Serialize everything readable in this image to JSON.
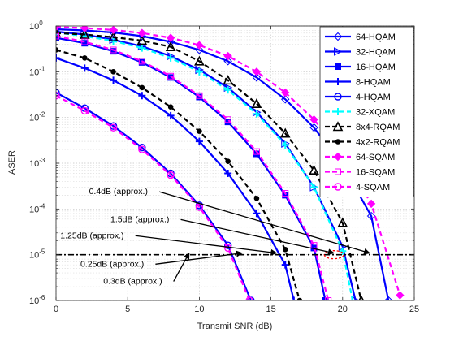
{
  "chart_data": {
    "type": "line",
    "xlabel": "Transmit SNR (dB)",
    "ylabel": "ASER",
    "xlim": [
      0,
      25
    ],
    "ylim": [
      1e-06,
      1
    ],
    "yscale": "log",
    "xticks": [
      "0",
      "5",
      "10",
      "15",
      "20",
      "25"
    ],
    "yticks": [
      "10^0",
      "10^-1",
      "10^-2",
      "10^-3",
      "10^-4",
      "10^-5",
      "10^-6"
    ],
    "grid": true,
    "legend_position": "top-right",
    "reference_level": 1e-05,
    "series": [
      {
        "name": "64-HQAM",
        "color": "#0000ff",
        "dash": "solid",
        "marker": "diamond",
        "points": [
          [
            0,
            0.85
          ],
          [
            2,
            0.8
          ],
          [
            4,
            0.72
          ],
          [
            6,
            0.6
          ],
          [
            8,
            0.45
          ],
          [
            10,
            0.3
          ],
          [
            12,
            0.17
          ],
          [
            14,
            0.075
          ],
          [
            16,
            0.025
          ],
          [
            18,
            0.006
          ],
          [
            20,
            0.0009
          ],
          [
            22,
            7e-05
          ],
          [
            23.2,
            1e-06
          ]
        ]
      },
      {
        "name": "32-HQAM",
        "color": "#0000ff",
        "dash": "solid",
        "marker": "triangle-right",
        "points": [
          [
            0,
            0.75
          ],
          [
            2,
            0.65
          ],
          [
            4,
            0.5
          ],
          [
            6,
            0.36
          ],
          [
            8,
            0.22
          ],
          [
            10,
            0.11
          ],
          [
            12,
            0.045
          ],
          [
            14,
            0.013
          ],
          [
            16,
            0.0027
          ],
          [
            18,
            0.0003
          ],
          [
            20,
            1.5e-05
          ],
          [
            20.9,
            1e-06
          ]
        ]
      },
      {
        "name": "16-HQAM",
        "color": "#0000ff",
        "dash": "solid",
        "marker": "square",
        "points": [
          [
            0,
            0.55
          ],
          [
            2,
            0.42
          ],
          [
            4,
            0.28
          ],
          [
            6,
            0.16
          ],
          [
            8,
            0.075
          ],
          [
            10,
            0.028
          ],
          [
            12,
            0.008
          ],
          [
            14,
            0.0016
          ],
          [
            16,
            0.0002
          ],
          [
            18,
            1.4e-05
          ],
          [
            18.8,
            1e-06
          ]
        ]
      },
      {
        "name": "8-HQAM",
        "color": "#0000ff",
        "dash": "solid",
        "marker": "plus",
        "points": [
          [
            0,
            0.2
          ],
          [
            2,
            0.12
          ],
          [
            4,
            0.065
          ],
          [
            6,
            0.03
          ],
          [
            8,
            0.011
          ],
          [
            10,
            0.003
          ],
          [
            12,
            0.0006
          ],
          [
            14,
            8e-05
          ],
          [
            16,
            6e-06
          ],
          [
            16.6,
            1e-06
          ]
        ]
      },
      {
        "name": "4-HQAM",
        "color": "#0000ff",
        "dash": "solid",
        "marker": "circle",
        "points": [
          [
            0,
            0.035
          ],
          [
            2,
            0.016
          ],
          [
            4,
            0.0065
          ],
          [
            6,
            0.0022
          ],
          [
            8,
            0.0006
          ],
          [
            10,
            0.00012
          ],
          [
            12,
            1.6e-05
          ],
          [
            13.6,
            1e-06
          ]
        ]
      },
      {
        "name": "32-XQAM",
        "color": "#00ffff",
        "dash": "dash",
        "marker": "plus",
        "points": [
          [
            0,
            0.72
          ],
          [
            2,
            0.6
          ],
          [
            4,
            0.47
          ],
          [
            6,
            0.33
          ],
          [
            8,
            0.2
          ],
          [
            10,
            0.1
          ],
          [
            12,
            0.04
          ],
          [
            14,
            0.012
          ],
          [
            16,
            0.0025
          ],
          [
            18,
            0.0003
          ],
          [
            20,
            1.2e-05
          ],
          [
            20.7,
            1e-06
          ]
        ]
      },
      {
        "name": "8x4-RQAM",
        "color": "#000000",
        "dash": "dash",
        "marker": "triangle-up",
        "points": [
          [
            0,
            0.7
          ],
          [
            2,
            0.65
          ],
          [
            4,
            0.57
          ],
          [
            6,
            0.48
          ],
          [
            8,
            0.35
          ],
          [
            10,
            0.17
          ],
          [
            12,
            0.065
          ],
          [
            14,
            0.02
          ],
          [
            16,
            0.0045
          ],
          [
            18,
            0.0007
          ],
          [
            20,
            5e-05
          ],
          [
            21.3,
            1e-06
          ]
        ]
      },
      {
        "name": "4x2-RQAM",
        "color": "#000000",
        "dash": "dash",
        "marker": "dot",
        "points": [
          [
            0,
            0.3
          ],
          [
            2,
            0.2
          ],
          [
            4,
            0.1
          ],
          [
            6,
            0.045
          ],
          [
            8,
            0.017
          ],
          [
            10,
            0.005
          ],
          [
            12,
            0.0011
          ],
          [
            14,
            0.00017
          ],
          [
            16,
            1.3e-05
          ],
          [
            17,
            1e-06
          ]
        ]
      },
      {
        "name": "64-SQAM",
        "color": "#ff00ff",
        "dash": "dash",
        "marker": "diamond",
        "points": [
          [
            0,
            0.95
          ],
          [
            2,
            0.9
          ],
          [
            4,
            0.82
          ],
          [
            6,
            0.7
          ],
          [
            8,
            0.55
          ],
          [
            10,
            0.38
          ],
          [
            12,
            0.22
          ],
          [
            14,
            0.1
          ],
          [
            16,
            0.035
          ],
          [
            18,
            0.009
          ],
          [
            20,
            0.0015
          ],
          [
            22,
            0.00013
          ],
          [
            24,
            1.3e-06
          ]
        ]
      },
      {
        "name": "16-SQAM",
        "color": "#ff00ff",
        "dash": "dash",
        "marker": "square",
        "points": [
          [
            0,
            0.6
          ],
          [
            2,
            0.45
          ],
          [
            4,
            0.3
          ],
          [
            6,
            0.17
          ],
          [
            8,
            0.08
          ],
          [
            10,
            0.03
          ],
          [
            12,
            0.009
          ],
          [
            14,
            0.0018
          ],
          [
            16,
            0.00022
          ],
          [
            18,
            1.6e-05
          ],
          [
            19,
            1e-06
          ]
        ]
      },
      {
        "name": "4-SQAM",
        "color": "#ff00ff",
        "dash": "dash",
        "marker": "circle",
        "points": [
          [
            0,
            0.03
          ],
          [
            2,
            0.014
          ],
          [
            4,
            0.006
          ],
          [
            6,
            0.002
          ],
          [
            8,
            0.00055
          ],
          [
            10,
            0.00011
          ],
          [
            12,
            1.4e-05
          ],
          [
            13.5,
            1e-06
          ]
        ]
      }
    ],
    "annotations": [
      {
        "text": "0.4dB (approx.)",
        "label_at": [
          2.3,
          0.00021
        ],
        "arrow_to": [
          22.0,
          1e-05
        ]
      },
      {
        "text": "1.5dB (approx.)",
        "label_at": [
          3.8,
          5.2e-05
        ],
        "arrow_to": [
          19.5,
          1e-05
        ]
      },
      {
        "text": "1.25dB (approx.)",
        "label_at": [
          0.3,
          2.3e-05
        ],
        "arrow_to": [
          15.5,
          1e-05
        ]
      },
      {
        "text": "0.25dB (approx.)",
        "label_at": [
          1.7,
          5.5e-06
        ],
        "arrow_to": [
          13.1,
          1e-05
        ]
      },
      {
        "text": "0.3dB (approx.)",
        "label_at": [
          3.3,
          2.3e-06
        ],
        "arrow_to": [
          9.4,
          1e-05
        ]
      }
    ]
  }
}
